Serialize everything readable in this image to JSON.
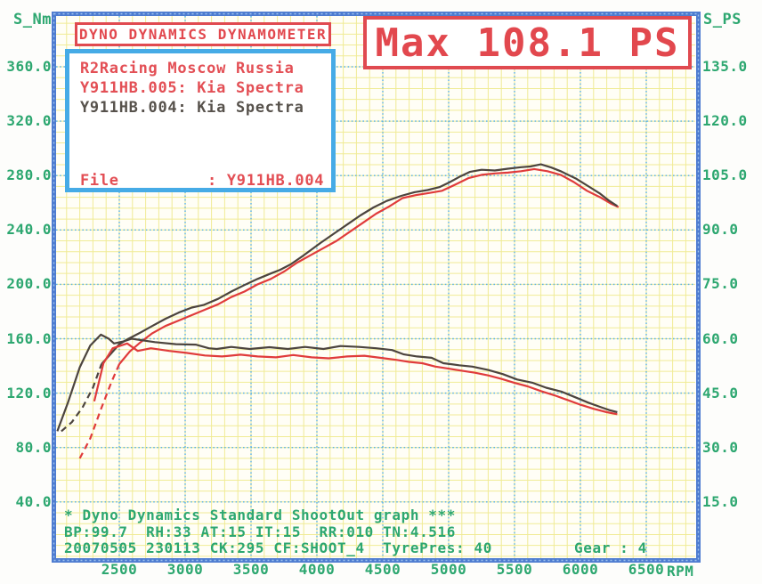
{
  "title_box": {
    "label": "DYNO DYNAMICS DYNAMOMETER"
  },
  "info_box": {
    "line1": "R2Racing Moscow Russia",
    "line2": "Y911HB.005: Kia Spectra",
    "line3": "Y911HB.004: Kia Spectra",
    "file_label": "File",
    "file_value": ": Y911HB.004"
  },
  "max_box": {
    "label": "Max 108.1 PS"
  },
  "axes": {
    "left": {
      "title": "S_Nm",
      "ticks": [
        360,
        320,
        280,
        240,
        200,
        160,
        120,
        80,
        40
      ]
    },
    "right": {
      "title": "S_PS",
      "ticks": [
        135,
        120,
        105,
        90,
        75,
        60,
        45,
        30,
        15
      ]
    },
    "x": {
      "unit": "RPM",
      "ticks": [
        2500,
        3000,
        3500,
        4000,
        4500,
        5000,
        5500,
        6000,
        6500
      ]
    }
  },
  "footer": {
    "line1": "* Dyno Dynamics Standard ShootOut graph ***",
    "line2": "BP:99.7  RH:33 AT:15 IT:15  RR:010 TN:4.516",
    "line3": "20070505 230113 CK:295 CF:SHOOT_4  TyrePres: 40",
    "gear": "Gear : 4"
  },
  "colors": {
    "green_text": "#2DA770",
    "red_text": "#E34F55",
    "red_box_border": "#E04A50",
    "info_box_border": "#46ABE6",
    "plot_border": "#4E7CD0",
    "major_grid": "#58B0E8",
    "minor_grid": "#F0EB96",
    "plot_background": "#FFFEF6",
    "curve_dark": "#4C443E",
    "curve_red": "#E03B3B"
  },
  "chart_data": {
    "type": "line",
    "title": "Dyno Dynamics Standard ShootOut graph",
    "x_label": "RPM",
    "x_ticks": [
      2500,
      3000,
      3500,
      4000,
      4500,
      5000,
      5500,
      6000,
      6500
    ],
    "y_left_label": "S_Nm",
    "y_left_ticks": [
      40,
      80,
      120,
      160,
      200,
      240,
      280,
      320,
      360
    ],
    "y_right_label": "S_PS",
    "y_right_ticks": [
      15,
      30,
      45,
      60,
      75,
      90,
      105,
      120,
      135
    ],
    "axis_alignment_note": "40 Nm line coincides with 15 PS line; 360 Nm coincides with 135 PS",
    "max_power_ps": 108.1,
    "grid": "yellow minor every 100 RPM / 8 Nm, blue dotted major every 500 RPM / 40 Nm",
    "series": [
      {
        "id": "power-run005-leadin",
        "run": "Y911HB.005",
        "quantity": "power",
        "unit": "PS",
        "color": "#E03B3B",
        "dashed": true,
        "points": [
          [
            2200,
            27
          ],
          [
            2280,
            32.5
          ],
          [
            2360,
            40.5
          ],
          [
            2440,
            48
          ],
          [
            2500,
            53
          ]
        ]
      },
      {
        "id": "power-run004-leadin",
        "run": "Y911HB.004",
        "quantity": "power",
        "unit": "PS",
        "color": "#4C443E",
        "dashed": true,
        "points": [
          [
            2060,
            34.5
          ],
          [
            2140,
            37
          ],
          [
            2220,
            41
          ],
          [
            2300,
            46.5
          ],
          [
            2365,
            53
          ]
        ]
      },
      {
        "id": "power-run005",
        "run": "Y911HB.005",
        "quantity": "power",
        "unit": "PS",
        "color": "#E03B3B",
        "dashed": false,
        "points": [
          [
            2500,
            53
          ],
          [
            2580,
            56.5
          ],
          [
            2660,
            59
          ],
          [
            2750,
            61.5
          ],
          [
            2850,
            63.5
          ],
          [
            2950,
            65
          ],
          [
            3050,
            66.5
          ],
          [
            3150,
            68
          ],
          [
            3250,
            69.5
          ],
          [
            3350,
            71.5
          ],
          [
            3450,
            73
          ],
          [
            3550,
            75
          ],
          [
            3650,
            76.5
          ],
          [
            3750,
            78.5
          ],
          [
            3850,
            81
          ],
          [
            3950,
            83
          ],
          [
            4050,
            85
          ],
          [
            4150,
            87
          ],
          [
            4250,
            89.5
          ],
          [
            4350,
            92
          ],
          [
            4450,
            94.5
          ],
          [
            4550,
            96.5
          ],
          [
            4650,
            98.8
          ],
          [
            4750,
            99.6
          ],
          [
            4850,
            100.2
          ],
          [
            4950,
            100.8
          ],
          [
            5050,
            102.5
          ],
          [
            5150,
            104.3
          ],
          [
            5250,
            105.2
          ],
          [
            5350,
            105.6
          ],
          [
            5450,
            105.8
          ],
          [
            5550,
            106.2
          ],
          [
            5650,
            106.8
          ],
          [
            5750,
            106.2
          ],
          [
            5850,
            105.2
          ],
          [
            5950,
            103.2
          ],
          [
            6050,
            100.8
          ],
          [
            6150,
            99
          ],
          [
            6230,
            97.3
          ],
          [
            6290,
            96.3
          ]
        ]
      },
      {
        "id": "power-run004",
        "run": "Y911HB.004",
        "quantity": "power",
        "unit": "PS",
        "color": "#4C443E",
        "dashed": false,
        "points": [
          [
            2365,
            53
          ],
          [
            2440,
            56
          ],
          [
            2500,
            58.5
          ],
          [
            2570,
            60
          ],
          [
            2650,
            61.5
          ],
          [
            2750,
            63.5
          ],
          [
            2850,
            65.5
          ],
          [
            2950,
            67.2
          ],
          [
            3050,
            68.6
          ],
          [
            3140,
            69.3
          ],
          [
            3250,
            71
          ],
          [
            3350,
            73
          ],
          [
            3450,
            74.8
          ],
          [
            3550,
            76.5
          ],
          [
            3650,
            78
          ],
          [
            3720,
            79
          ],
          [
            3800,
            80.5
          ],
          [
            3900,
            83
          ],
          [
            4030,
            86.5
          ],
          [
            4130,
            89
          ],
          [
            4230,
            91.5
          ],
          [
            4330,
            94
          ],
          [
            4430,
            96.2
          ],
          [
            4530,
            98
          ],
          [
            4640,
            99.4
          ],
          [
            4740,
            100.4
          ],
          [
            4840,
            101
          ],
          [
            4930,
            101.8
          ],
          [
            5000,
            103
          ],
          [
            5080,
            104.6
          ],
          [
            5160,
            106
          ],
          [
            5250,
            106.6
          ],
          [
            5350,
            106.4
          ],
          [
            5450,
            106.9
          ],
          [
            5550,
            107.3
          ],
          [
            5620,
            107.5
          ],
          [
            5700,
            108.1
          ],
          [
            5780,
            107.2
          ],
          [
            5850,
            106.2
          ],
          [
            5970,
            104.1
          ],
          [
            6080,
            101.6
          ],
          [
            6150,
            100
          ],
          [
            6220,
            98
          ],
          [
            6280,
            96.6
          ]
        ]
      },
      {
        "id": "torque-run005",
        "run": "Y911HB.005",
        "quantity": "torque",
        "unit": "Nm",
        "color": "#E03B3B",
        "dashed": false,
        "points": [
          [
            2310,
            114
          ],
          [
            2380,
            142
          ],
          [
            2450,
            153
          ],
          [
            2560,
            156.5
          ],
          [
            2640,
            151
          ],
          [
            2740,
            153
          ],
          [
            2880,
            151
          ],
          [
            3010,
            149.6
          ],
          [
            3150,
            147.7
          ],
          [
            3280,
            147
          ],
          [
            3420,
            148.3
          ],
          [
            3550,
            147
          ],
          [
            3690,
            146.3
          ],
          [
            3820,
            148
          ],
          [
            3960,
            146.3
          ],
          [
            4090,
            145.6
          ],
          [
            4230,
            147
          ],
          [
            4360,
            147.5
          ],
          [
            4480,
            146
          ],
          [
            4600,
            144.5
          ],
          [
            4700,
            143
          ],
          [
            4800,
            142
          ],
          [
            4900,
            139.5
          ],
          [
            5000,
            138
          ],
          [
            5100,
            136.5
          ],
          [
            5200,
            135
          ],
          [
            5300,
            133
          ],
          [
            5400,
            130.5
          ],
          [
            5500,
            127.5
          ],
          [
            5600,
            125
          ],
          [
            5700,
            121.5
          ],
          [
            5800,
            118.5
          ],
          [
            5900,
            115
          ],
          [
            6000,
            111.5
          ],
          [
            6100,
            108.5
          ],
          [
            6200,
            106
          ],
          [
            6280,
            104.5
          ]
        ]
      },
      {
        "id": "torque-run004",
        "run": "Y911HB.004",
        "quantity": "torque",
        "unit": "Nm",
        "color": "#4C443E",
        "dashed": false,
        "points": [
          [
            2030,
            92
          ],
          [
            2110,
            113
          ],
          [
            2200,
            139
          ],
          [
            2280,
            155
          ],
          [
            2360,
            163
          ],
          [
            2420,
            160
          ],
          [
            2460,
            156.5
          ],
          [
            2530,
            158
          ],
          [
            2595,
            160
          ],
          [
            2700,
            158.5
          ],
          [
            2770,
            157.5
          ],
          [
            2930,
            156
          ],
          [
            3080,
            155.7
          ],
          [
            3180,
            153
          ],
          [
            3240,
            152.5
          ],
          [
            3350,
            154
          ],
          [
            3490,
            152.5
          ],
          [
            3640,
            153.8
          ],
          [
            3780,
            152.5
          ],
          [
            3910,
            154
          ],
          [
            4050,
            152.5
          ],
          [
            4180,
            154.6
          ],
          [
            4320,
            154
          ],
          [
            4450,
            153
          ],
          [
            4570,
            151.7
          ],
          [
            4660,
            148.5
          ],
          [
            4760,
            147
          ],
          [
            4870,
            146
          ],
          [
            4960,
            142
          ],
          [
            5080,
            140.5
          ],
          [
            5180,
            139.5
          ],
          [
            5300,
            137
          ],
          [
            5410,
            134
          ],
          [
            5520,
            130
          ],
          [
            5640,
            127.5
          ],
          [
            5740,
            124
          ],
          [
            5860,
            121
          ],
          [
            5960,
            117
          ],
          [
            6060,
            113
          ],
          [
            6160,
            109.5
          ],
          [
            6220,
            107.5
          ],
          [
            6280,
            106
          ]
        ]
      }
    ]
  }
}
